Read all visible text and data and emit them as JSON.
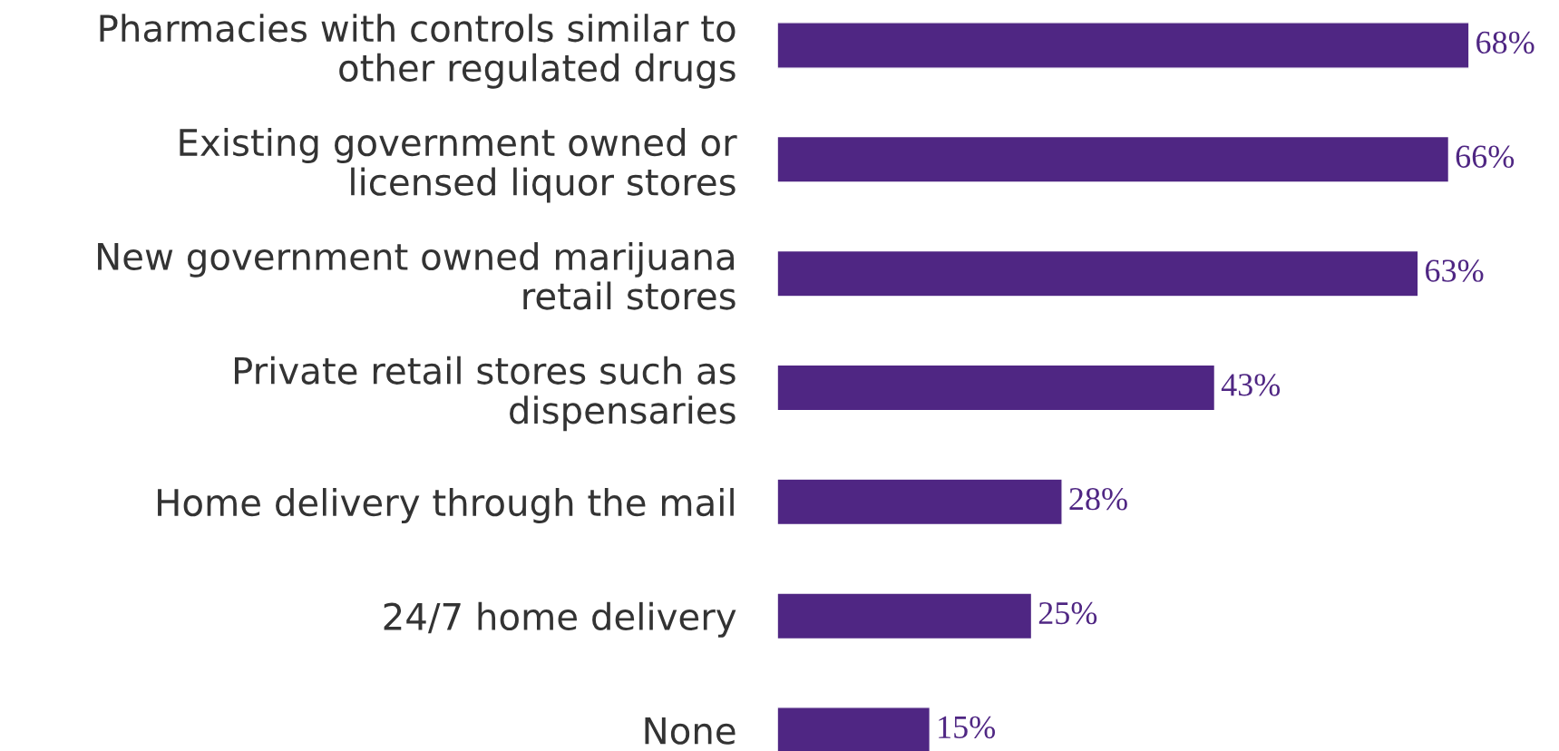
{
  "chart_data": {
    "type": "bar",
    "orientation": "horizontal",
    "categories": [
      "Pharmacies with controls similar to\nother regulated drugs",
      "Existing government owned or\nlicensed liquor stores",
      "New government owned marijuana\nretail stores",
      "Private retail stores such as\ndispensaries",
      "Home delivery through the mail",
      "24/7 home delivery",
      "None"
    ],
    "values": [
      68,
      66,
      63,
      43,
      28,
      25,
      15
    ],
    "value_labels": [
      "68%",
      "66%",
      "63%",
      "43%",
      "28%",
      "25%",
      "15%"
    ],
    "color": "#4f2683",
    "tick_labels": "y",
    "grid": false,
    "legend": false
  }
}
